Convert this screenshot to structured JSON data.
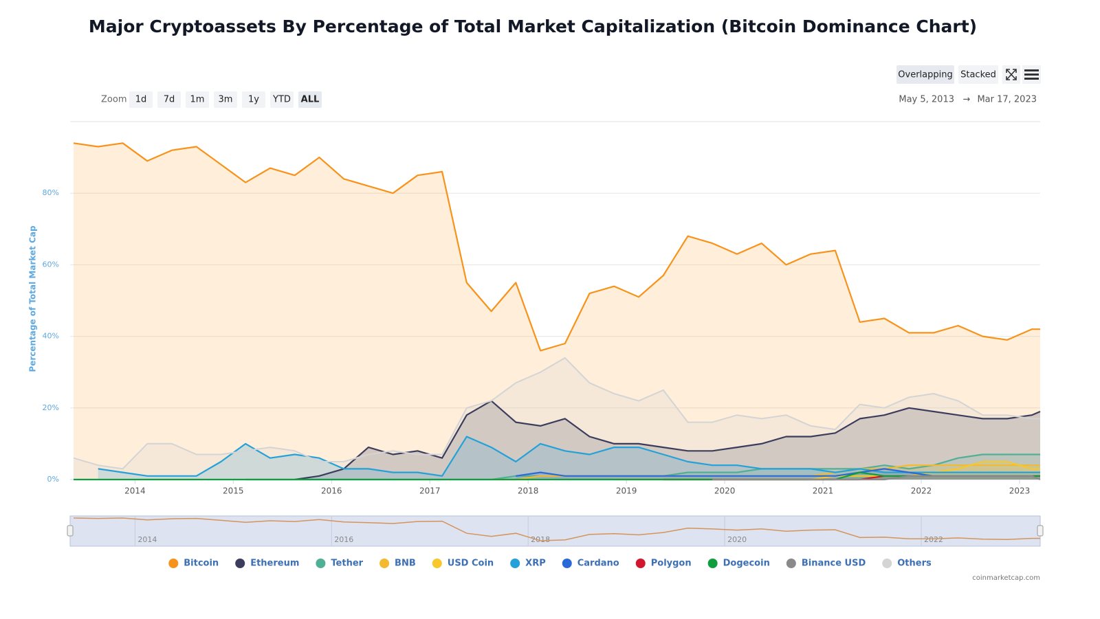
{
  "chart_data": {
    "type": "area",
    "title": "Major Cryptoassets By Percentage of Total Market Capitalization (Bitcoin Dominance Chart)",
    "ylabel": "Percentage of Total Market Cap",
    "zoom_label": "Zoom",
    "zoom_buttons": [
      "1d",
      "7d",
      "1m",
      "3m",
      "1y",
      "YTD",
      "ALL"
    ],
    "mode_buttons": [
      "Overlapping",
      "Stacked"
    ],
    "date_from": "May 5, 2013",
    "range_separator": "→",
    "date_to": "Mar 17, 2023",
    "credit": "coinmarketcap.com",
    "xlim": [
      2013.34,
      2023.21
    ],
    "xticks": [
      2014,
      2015,
      2016,
      2017,
      2018,
      2019,
      2020,
      2021,
      2022,
      2023
    ],
    "navigator_xticks": [
      2014,
      2016,
      2018,
      2020,
      2022
    ],
    "ylim": [
      0,
      100
    ],
    "yticks": [
      {
        "value": 0,
        "label": "0%"
      },
      {
        "value": 20,
        "label": "20%"
      },
      {
        "value": 40,
        "label": "40%"
      },
      {
        "value": 60,
        "label": "60%"
      },
      {
        "value": 80,
        "label": "80%"
      }
    ],
    "grid": true,
    "x": [
      2013.375,
      2013.625,
      2013.875,
      2014.125,
      2014.375,
      2014.625,
      2014.875,
      2015.125,
      2015.375,
      2015.625,
      2015.875,
      2016.125,
      2016.375,
      2016.625,
      2016.875,
      2017.125,
      2017.375,
      2017.625,
      2017.875,
      2018.125,
      2018.375,
      2018.625,
      2018.875,
      2019.125,
      2019.375,
      2019.625,
      2019.875,
      2020.125,
      2020.375,
      2020.625,
      2020.875,
      2021.125,
      2021.375,
      2021.625,
      2021.875,
      2022.125,
      2022.375,
      2022.625,
      2022.875,
      2023.125,
      2023.21
    ],
    "series": [
      {
        "name": "Bitcoin",
        "color": "#f7931a",
        "values": [
          94,
          93,
          94,
          89,
          92,
          93,
          88,
          83,
          87,
          85,
          90,
          84,
          82,
          80,
          85,
          86,
          55,
          47,
          55,
          36,
          38,
          52,
          54,
          51,
          57,
          68,
          66,
          63,
          66,
          60,
          63,
          64,
          44,
          45,
          41,
          41,
          43,
          40,
          39,
          42,
          42
        ]
      },
      {
        "name": "Ethereum",
        "color": "#3c3c5d",
        "values": [
          null,
          null,
          null,
          null,
          null,
          null,
          null,
          null,
          null,
          0,
          1,
          3,
          9,
          7,
          8,
          6,
          18,
          22,
          16,
          15,
          17,
          12,
          10,
          10,
          9,
          8,
          8,
          9,
          10,
          12,
          12,
          13,
          17,
          18,
          20,
          19,
          18,
          17,
          17,
          18,
          19
        ]
      },
      {
        "name": "Tether",
        "color": "#50af95",
        "values": [
          null,
          null,
          null,
          null,
          null,
          null,
          null,
          0,
          0,
          0,
          0,
          0,
          0,
          0,
          0,
          0,
          0,
          0,
          1,
          1,
          1,
          1,
          1,
          1,
          1,
          2,
          2,
          2,
          3,
          3,
          3,
          3,
          3,
          4,
          3,
          4,
          6,
          7,
          7,
          7,
          7
        ]
      },
      {
        "name": "BNB",
        "color": "#f3ba2f",
        "values": [
          null,
          null,
          null,
          null,
          null,
          null,
          null,
          null,
          null,
          null,
          null,
          null,
          null,
          null,
          null,
          null,
          null,
          0,
          0,
          1,
          1,
          1,
          1,
          1,
          1,
          1,
          1,
          1,
          1,
          1,
          1,
          2,
          3,
          3,
          4,
          4,
          4,
          4,
          4,
          4,
          4
        ]
      },
      {
        "name": "USD Coin",
        "color": "#f7c72c",
        "values": [
          null,
          null,
          null,
          null,
          null,
          null,
          null,
          null,
          null,
          null,
          null,
          null,
          null,
          null,
          null,
          null,
          null,
          null,
          null,
          null,
          null,
          null,
          0,
          0,
          0,
          0,
          0,
          0,
          0,
          0,
          0,
          1,
          1,
          1,
          1,
          2,
          3,
          5,
          5,
          3,
          3
        ]
      },
      {
        "name": "XRP",
        "color": "#23a1d8",
        "values": [
          null,
          3,
          2,
          1,
          1,
          1,
          5,
          10,
          6,
          7,
          6,
          3,
          3,
          2,
          2,
          1,
          12,
          9,
          5,
          10,
          8,
          7,
          9,
          9,
          7,
          5,
          4,
          4,
          3,
          3,
          3,
          2,
          3,
          2,
          2,
          2,
          2,
          2,
          2,
          2,
          2
        ]
      },
      {
        "name": "Cardano",
        "color": "#2a6ad8",
        "values": [
          null,
          null,
          null,
          null,
          null,
          null,
          null,
          null,
          null,
          null,
          null,
          null,
          null,
          null,
          null,
          null,
          null,
          null,
          1,
          2,
          1,
          1,
          1,
          1,
          1,
          1,
          1,
          1,
          1,
          1,
          1,
          1,
          2,
          3,
          2,
          1,
          1,
          1,
          1,
          1,
          1
        ]
      },
      {
        "name": "Polygon",
        "color": "#d0172d",
        "values": [
          null,
          null,
          null,
          null,
          null,
          null,
          null,
          null,
          null,
          null,
          null,
          null,
          null,
          null,
          null,
          null,
          null,
          null,
          null,
          null,
          null,
          null,
          null,
          null,
          0,
          0,
          0,
          0,
          0,
          0,
          0,
          0,
          0,
          1,
          1,
          1,
          1,
          1,
          1,
          1,
          1
        ]
      },
      {
        "name": "Dogecoin",
        "color": "#0f9d3f",
        "values": [
          0,
          0,
          0,
          0,
          0,
          0,
          0,
          0,
          0,
          0,
          0,
          0,
          0,
          0,
          0,
          0,
          0,
          0,
          0,
          0,
          0,
          0,
          0,
          0,
          0,
          0,
          0,
          0,
          0,
          0,
          0,
          0,
          2,
          1,
          1,
          1,
          1,
          1,
          1,
          1,
          1
        ]
      },
      {
        "name": "Binance USD",
        "color": "#8a8a8a",
        "values": [
          null,
          null,
          null,
          null,
          null,
          null,
          null,
          null,
          null,
          null,
          null,
          null,
          null,
          null,
          null,
          null,
          null,
          null,
          null,
          null,
          null,
          null,
          null,
          null,
          null,
          null,
          0,
          0,
          0,
          0,
          0,
          0,
          0,
          0,
          1,
          1,
          1,
          1,
          1,
          1,
          0
        ]
      },
      {
        "name": "Others",
        "color": "#d4d4d4",
        "values": [
          6,
          4,
          3,
          10,
          10,
          7,
          7,
          8,
          9,
          8,
          5,
          5,
          7,
          8,
          7,
          7,
          20,
          22,
          27,
          30,
          34,
          27,
          24,
          22,
          25,
          16,
          16,
          18,
          17,
          18,
          15,
          14,
          21,
          20,
          23,
          24,
          22,
          18,
          18,
          17,
          17
        ]
      }
    ]
  }
}
